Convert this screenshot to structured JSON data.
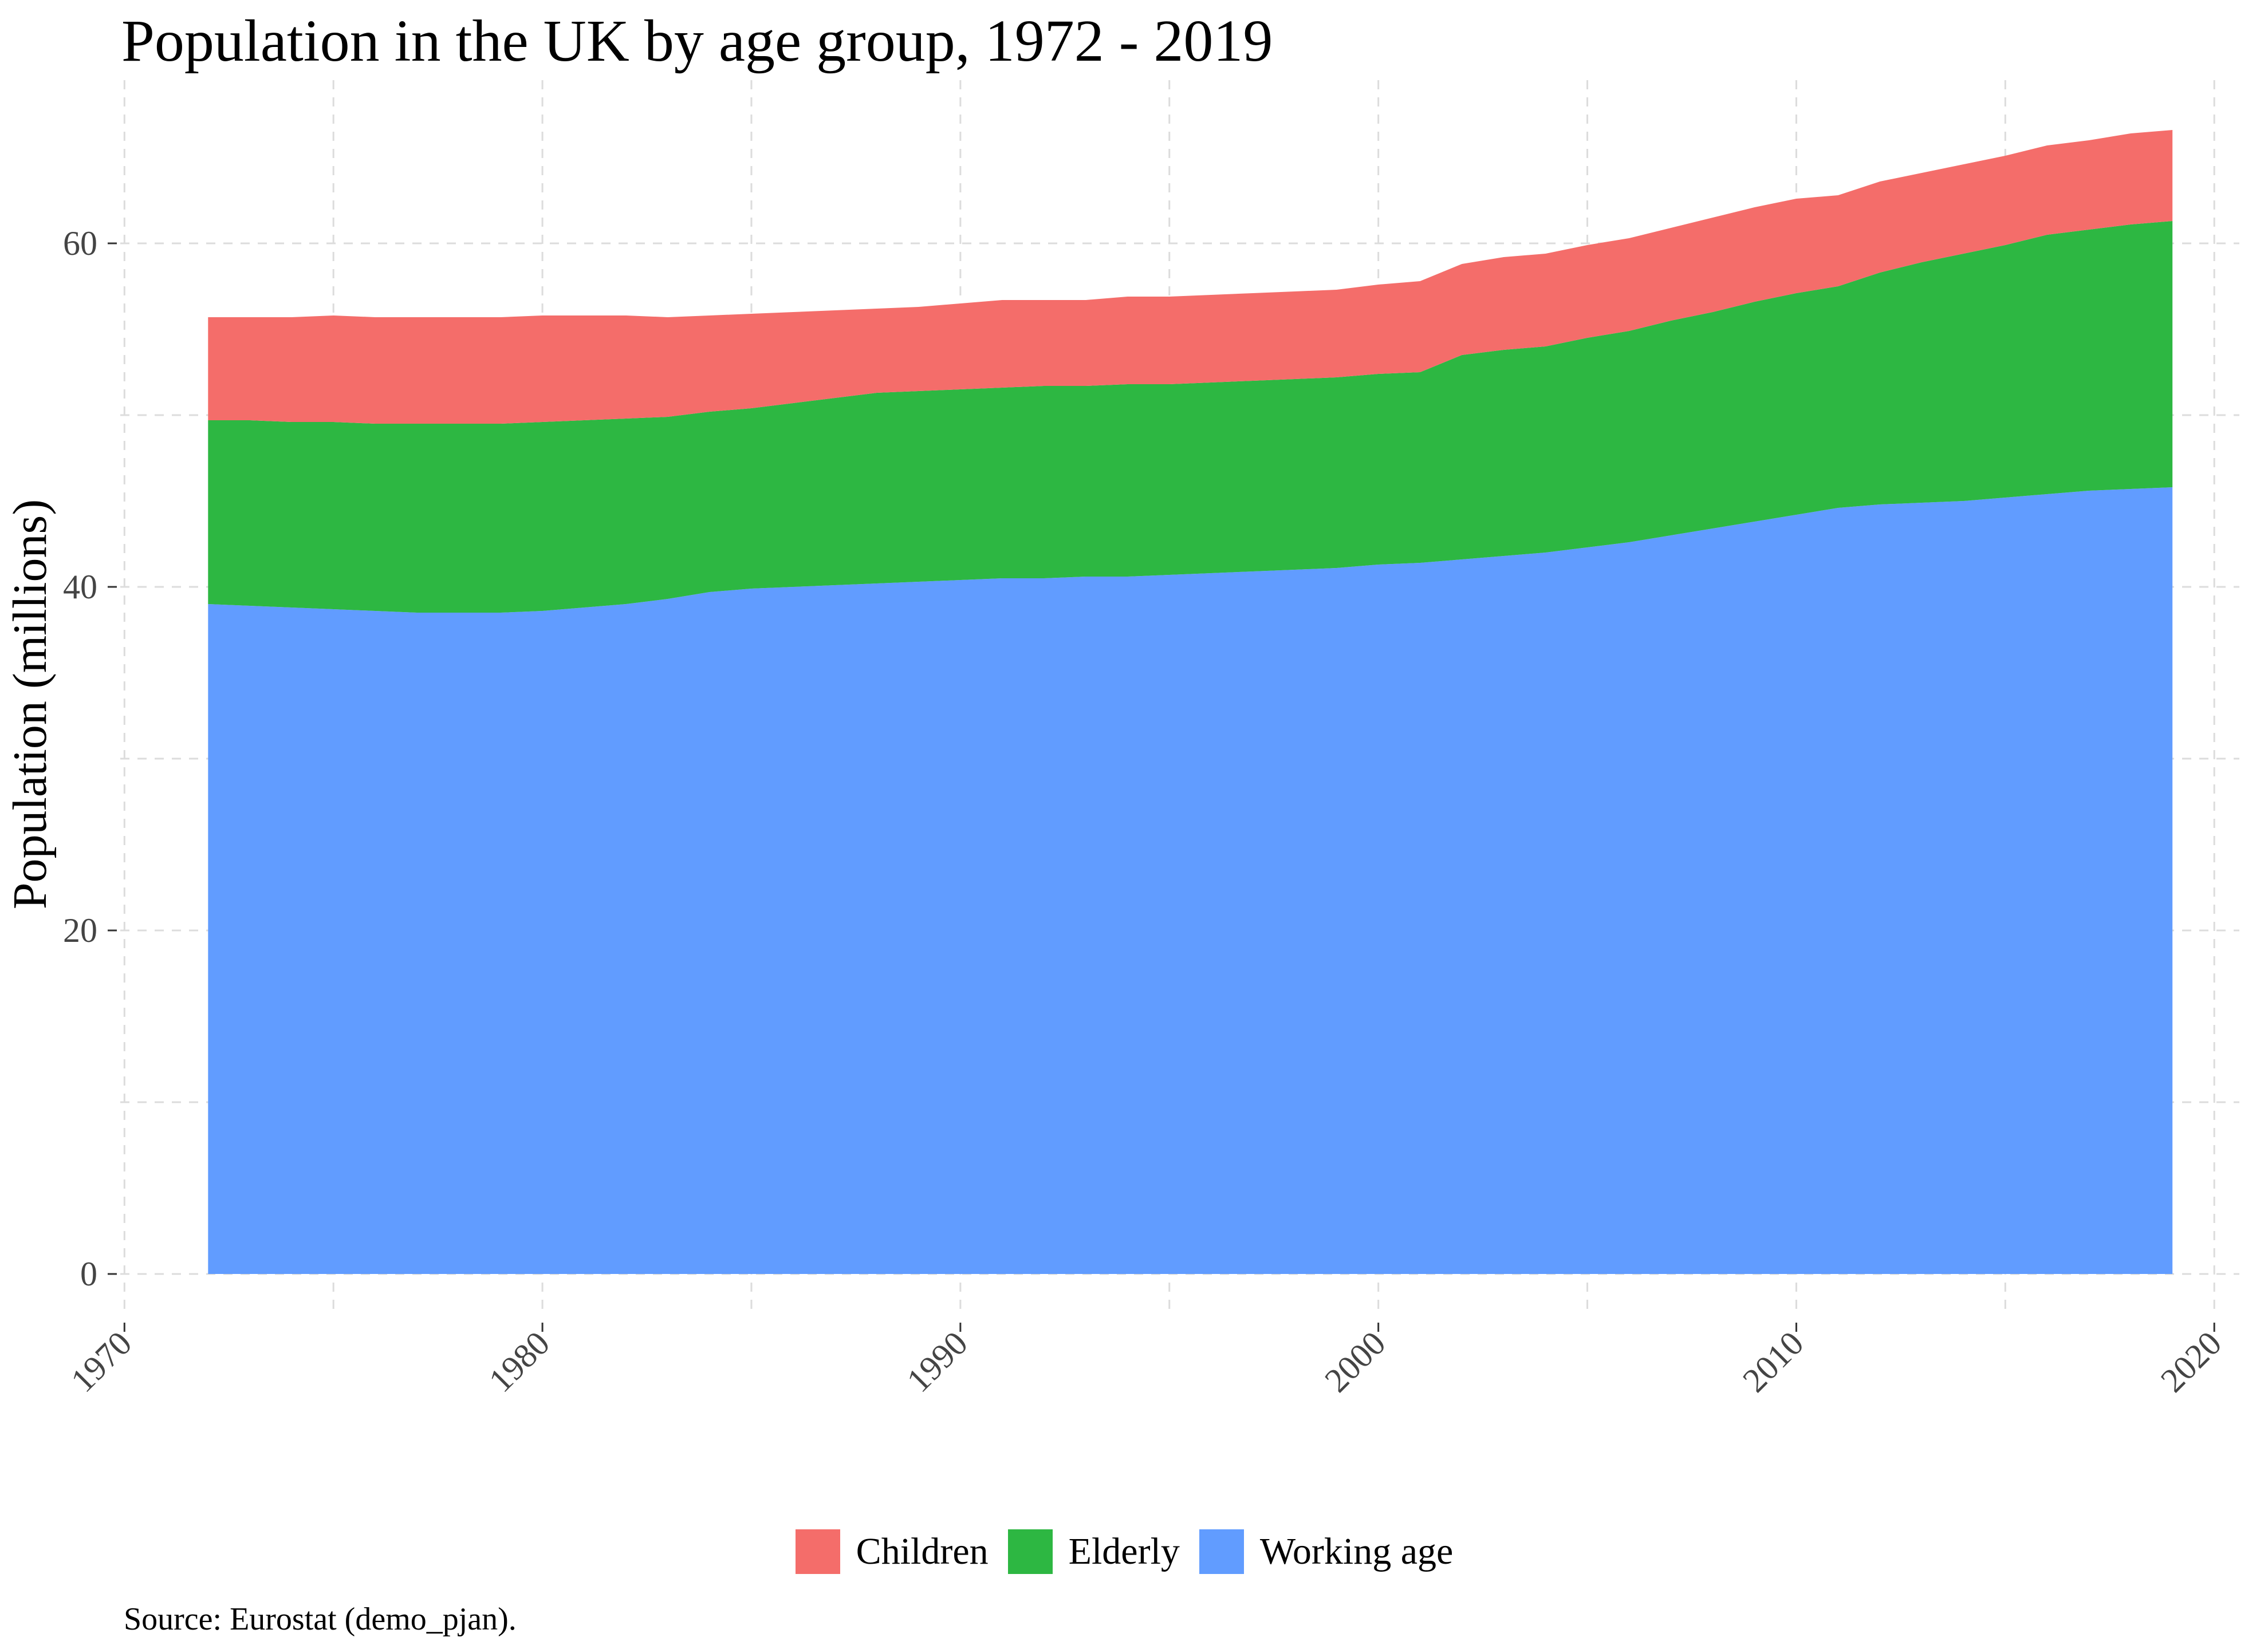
{
  "chart_data": {
    "type": "area",
    "title": "Population in the UK by age group, 1972 - 2019",
    "xlabel": "",
    "ylabel": "Population (millions)",
    "source": "Source: Eurostat (demo_pjan).",
    "xlim": [
      1969.9,
      2020.6
    ],
    "ylim": [
      -2.5,
      69.5
    ],
    "x_ticks": [
      1970,
      1980,
      1990,
      2000,
      2010,
      2020
    ],
    "x_tick_labels": [
      "1970",
      "1980",
      "1990",
      "2000",
      "2010",
      "2020"
    ],
    "y_ticks": [
      0,
      20,
      40,
      60
    ],
    "y_tick_labels": [
      "0",
      "20",
      "40",
      "60"
    ],
    "y_minor_ticks": [
      10,
      30,
      50
    ],
    "x_minor_ticks": [
      1975,
      1985,
      1995,
      2005,
      2015
    ],
    "grid": true,
    "stacked": true,
    "legend_position": "bottom",
    "x": [
      1972,
      1973,
      1974,
      1975,
      1976,
      1977,
      1978,
      1979,
      1980,
      1981,
      1982,
      1983,
      1984,
      1985,
      1986,
      1987,
      1988,
      1989,
      1990,
      1991,
      1992,
      1993,
      1994,
      1995,
      1996,
      1997,
      1998,
      1999,
      2000,
      2001,
      2002,
      2003,
      2004,
      2005,
      2006,
      2007,
      2008,
      2009,
      2010,
      2011,
      2012,
      2013,
      2014,
      2015,
      2016,
      2017,
      2018,
      2019
    ],
    "series": [
      {
        "name": "Working age",
        "color": "#619CFF",
        "values": [
          39.0,
          38.9,
          38.8,
          38.7,
          38.6,
          38.5,
          38.5,
          38.5,
          38.6,
          38.8,
          39.0,
          39.3,
          39.7,
          39.9,
          40.0,
          40.1,
          40.2,
          40.3,
          40.4,
          40.5,
          40.5,
          40.6,
          40.6,
          40.7,
          40.8,
          40.9,
          41.0,
          41.1,
          41.3,
          41.4,
          41.6,
          41.8,
          42.0,
          42.3,
          42.6,
          43.0,
          43.4,
          43.8,
          44.2,
          44.6,
          44.8,
          44.9,
          45.0,
          45.2,
          45.4,
          45.6,
          45.7,
          45.8
        ]
      },
      {
        "name": "Elderly",
        "color": "#2DB742",
        "values": [
          10.7,
          10.8,
          10.8,
          10.9,
          10.9,
          11.0,
          11.0,
          11.0,
          11.0,
          10.9,
          10.8,
          10.6,
          10.5,
          10.5,
          10.7,
          10.9,
          11.1,
          11.1,
          11.1,
          11.1,
          11.2,
          11.1,
          11.2,
          11.1,
          11.1,
          11.1,
          11.1,
          11.1,
          11.1,
          11.1,
          11.9,
          12.0,
          12.0,
          12.2,
          12.3,
          12.5,
          12.6,
          12.8,
          12.9,
          12.9,
          13.5,
          14.0,
          14.4,
          14.7,
          15.1,
          15.2,
          15.4,
          15.5
        ]
      },
      {
        "name": "Children",
        "color": "#F46D6A",
        "values": [
          6.0,
          6.0,
          6.1,
          6.2,
          6.2,
          6.2,
          6.2,
          6.2,
          6.2,
          6.1,
          6.0,
          5.8,
          5.6,
          5.5,
          5.3,
          5.1,
          4.9,
          4.9,
          5.0,
          5.1,
          5.0,
          5.0,
          5.1,
          5.1,
          5.1,
          5.1,
          5.1,
          5.1,
          5.2,
          5.3,
          5.3,
          5.4,
          5.4,
          5.4,
          5.4,
          5.4,
          5.5,
          5.5,
          5.5,
          5.3,
          5.3,
          5.2,
          5.2,
          5.2,
          5.2,
          5.2,
          5.3,
          5.3
        ]
      }
    ]
  },
  "legend": {
    "items": [
      {
        "label": "Children",
        "color": "#F46D6A"
      },
      {
        "label": "Elderly",
        "color": "#2DB742"
      },
      {
        "label": "Working age",
        "color": "#619CFF"
      }
    ]
  }
}
